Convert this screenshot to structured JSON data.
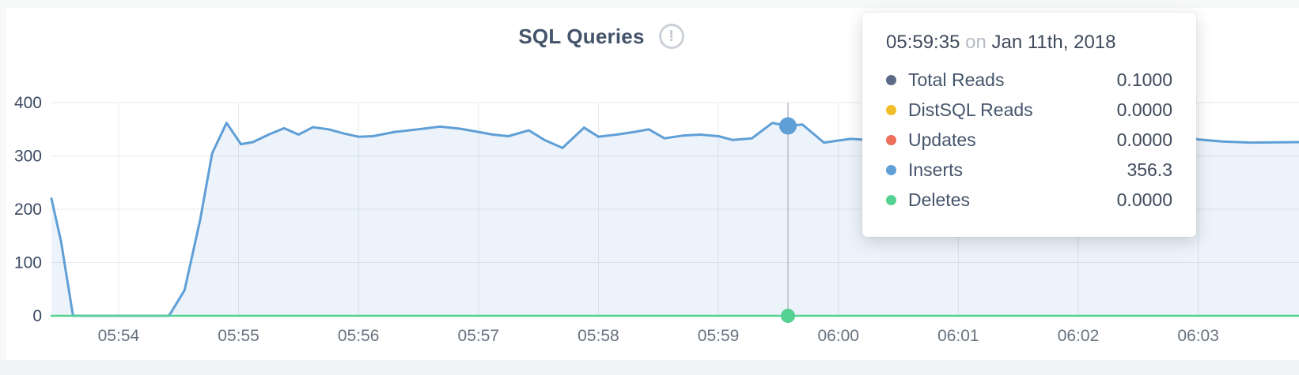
{
  "page": {
    "title": "SQL Queries",
    "info_icon": "!"
  },
  "tooltip": {
    "time": "05:59:35",
    "conjunction": "on",
    "date": "Jan 11th, 2018",
    "rows": [
      {
        "label": "Total Reads",
        "value": "0.1000",
        "color": "#5a6b85"
      },
      {
        "label": "DistSQL Reads",
        "value": "0.0000",
        "color": "#f2be2c"
      },
      {
        "label": "Updates",
        "value": "0.0000",
        "color": "#ed6e59"
      },
      {
        "label": "Inserts",
        "value": "356.3",
        "color": "#5f9fd6"
      },
      {
        "label": "Deletes",
        "value": "0.0000",
        "color": "#55d191"
      }
    ]
  },
  "chart_data": {
    "type": "area",
    "title": "SQL Queries",
    "ylim": [
      0,
      400
    ],
    "yticks": [
      0,
      100,
      200,
      300,
      400
    ],
    "xlim_minutes": [
      53.44,
      63.84
    ],
    "xticks": [
      {
        "minute": 54,
        "label": "05:54"
      },
      {
        "minute": 55,
        "label": "05:55"
      },
      {
        "minute": 56,
        "label": "05:56"
      },
      {
        "minute": 57,
        "label": "05:57"
      },
      {
        "minute": 58,
        "label": "05:58"
      },
      {
        "minute": 59,
        "label": "05:59"
      },
      {
        "minute": 60,
        "label": "06:00"
      },
      {
        "minute": 61,
        "label": "06:01"
      },
      {
        "minute": 62,
        "label": "06:02"
      },
      {
        "minute": 63,
        "label": "06:03"
      }
    ],
    "series": [
      {
        "name": "Inserts",
        "color": "#5f9fd6",
        "line_width": 3,
        "area_fill": "rgba(95,159,214,0.12)",
        "points": [
          [
            53.44,
            220
          ],
          [
            53.52,
            140
          ],
          [
            53.62,
            0
          ],
          [
            54.0,
            0
          ],
          [
            54.42,
            0
          ],
          [
            54.55,
            48
          ],
          [
            54.68,
            180
          ],
          [
            54.78,
            305
          ],
          [
            54.9,
            362
          ],
          [
            55.02,
            322
          ],
          [
            55.12,
            326
          ],
          [
            55.25,
            340
          ],
          [
            55.38,
            352
          ],
          [
            55.5,
            340
          ],
          [
            55.62,
            354
          ],
          [
            55.75,
            350
          ],
          [
            55.88,
            342
          ],
          [
            56.0,
            336
          ],
          [
            56.12,
            337
          ],
          [
            56.3,
            345
          ],
          [
            56.5,
            350
          ],
          [
            56.68,
            355
          ],
          [
            56.85,
            351
          ],
          [
            57.0,
            345
          ],
          [
            57.12,
            340
          ],
          [
            57.25,
            337
          ],
          [
            57.42,
            348
          ],
          [
            57.55,
            330
          ],
          [
            57.7,
            315
          ],
          [
            57.88,
            353
          ],
          [
            58.0,
            336
          ],
          [
            58.15,
            340
          ],
          [
            58.3,
            345
          ],
          [
            58.42,
            350
          ],
          [
            58.55,
            333
          ],
          [
            58.7,
            338
          ],
          [
            58.85,
            340
          ],
          [
            59.0,
            337
          ],
          [
            59.12,
            330
          ],
          [
            59.28,
            333
          ],
          [
            59.45,
            362
          ],
          [
            59.58,
            356.3
          ],
          [
            59.7,
            359
          ],
          [
            59.88,
            325
          ],
          [
            60.1,
            332
          ],
          [
            60.4,
            328
          ],
          [
            60.7,
            335
          ],
          [
            61.0,
            330
          ],
          [
            61.3,
            336
          ],
          [
            61.6,
            331
          ],
          [
            61.9,
            334
          ],
          [
            62.2,
            330
          ],
          [
            62.5,
            335
          ],
          [
            62.8,
            341
          ],
          [
            63.0,
            331
          ],
          [
            63.2,
            327
          ],
          [
            63.44,
            325
          ],
          [
            63.84,
            326
          ]
        ]
      },
      {
        "name": "Deletes",
        "color": "#55d191",
        "line_width": 2.5,
        "points": [
          [
            53.44,
            0
          ],
          [
            63.84,
            0
          ]
        ]
      }
    ],
    "highlight": {
      "minute": 59.58,
      "crosshair_color": "#b9bec6",
      "points": [
        {
          "series": "Inserts",
          "value": 356.3,
          "color": "#5f9fd6",
          "radius": 11
        },
        {
          "series": "Deletes",
          "value": 0,
          "color": "#55d191",
          "radius": 9
        }
      ]
    },
    "axis": {
      "y_label_color": "#3c4a63",
      "x_label_color": "#68727f",
      "grid_color": "#e8eaec"
    },
    "legend_position": "tooltip",
    "grid": true
  }
}
